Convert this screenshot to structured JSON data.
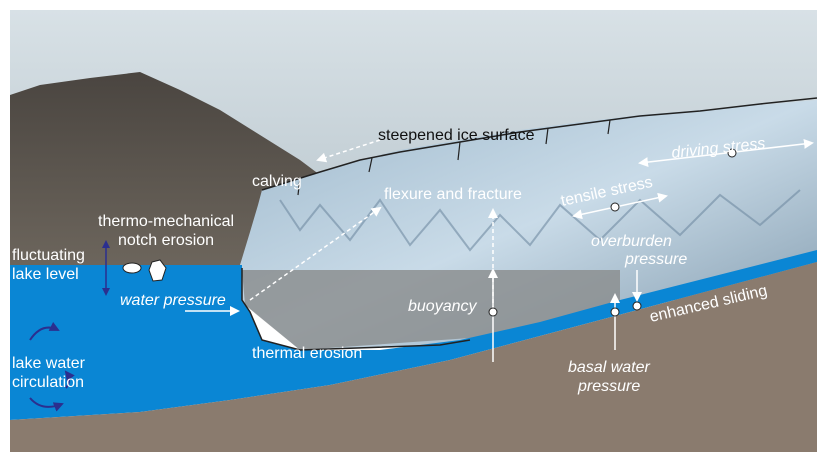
{
  "labels": {
    "steepened_ice_surface": "steepened ice surface",
    "calving": "calving",
    "flexure_and_fracture": "flexure and fracture",
    "driving_stress": "driving stress",
    "tensile_stress": "tensile stress",
    "thermo_mechanical_1": "thermo-mechanical",
    "thermo_mechanical_2": "notch erosion",
    "fluctuating_1": "fluctuating",
    "fluctuating_2": "lake level",
    "overburden_1": "overburden",
    "overburden_2": "pressure",
    "water_pressure": "water pressure",
    "buoyancy": "buoyancy",
    "enhanced_sliding": "enhanced sliding",
    "thermal_erosion": "thermal erosion",
    "lake_circ_1": "lake water",
    "lake_circ_2": "circulation",
    "basal_water_1": "basal water",
    "basal_water_2": "pressure"
  },
  "colors": {
    "lake": "#0a86d4",
    "bed": "#8a7b6e",
    "ice": "#b9cede",
    "mountain": "#5a544d",
    "sky": "#c7d3da",
    "arrow": "#ffffff",
    "circulation": "#2b2f8f"
  }
}
